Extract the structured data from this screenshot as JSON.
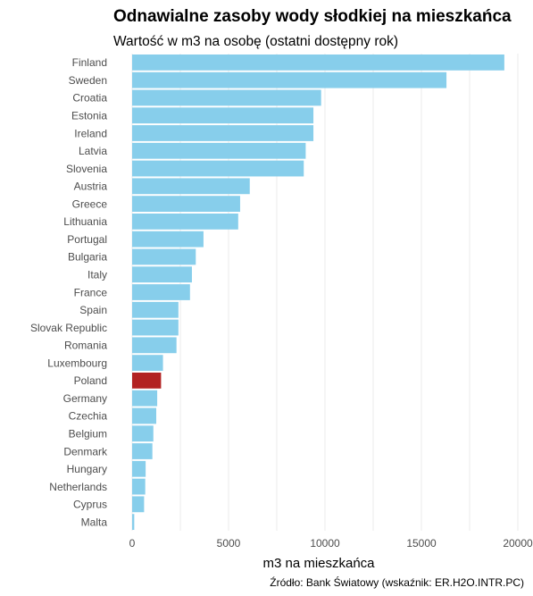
{
  "chart_data": {
    "type": "bar",
    "orientation": "horizontal",
    "title": "Odnawialne zasoby wody słodkiej na mieszkańca",
    "subtitle": "Wartość w m3 na osobę (ostatni dostępny rok)",
    "xlabel": "m3 na mieszkańca",
    "ylabel": "",
    "caption": "Źródło: Bank Światowy (wskaźnik: ER.H2O.INTR.PC)",
    "xlim": [
      0,
      20000
    ],
    "x_ticks": [
      0,
      5000,
      10000,
      15000,
      20000
    ],
    "x_tick_labels": [
      "0",
      "5000",
      "10000",
      "15000",
      "20000"
    ],
    "grid": true,
    "legend": "none",
    "categories": [
      "Finland",
      "Sweden",
      "Croatia",
      "Estonia",
      "Ireland",
      "Latvia",
      "Slovenia",
      "Austria",
      "Greece",
      "Lithuania",
      "Portugal",
      "Bulgaria",
      "Italy",
      "France",
      "Spain",
      "Slovak Republic",
      "Romania",
      "Luxembourg",
      "Poland",
      "Germany",
      "Czechia",
      "Belgium",
      "Denmark",
      "Hungary",
      "Netherlands",
      "Cyprus",
      "Malta"
    ],
    "values": [
      19300,
      16300,
      9800,
      9400,
      9400,
      9000,
      8900,
      6100,
      5600,
      5500,
      3700,
      3300,
      3100,
      3000,
      2400,
      2400,
      2300,
      1600,
      1500,
      1300,
      1250,
      1100,
      1050,
      700,
      680,
      620,
      110
    ],
    "highlight_category": "Poland",
    "colors": {
      "bar": "#87ceeb",
      "highlight": "#b22222",
      "grid": "#ebebeb",
      "tick_text": "#4d4d4d"
    }
  }
}
